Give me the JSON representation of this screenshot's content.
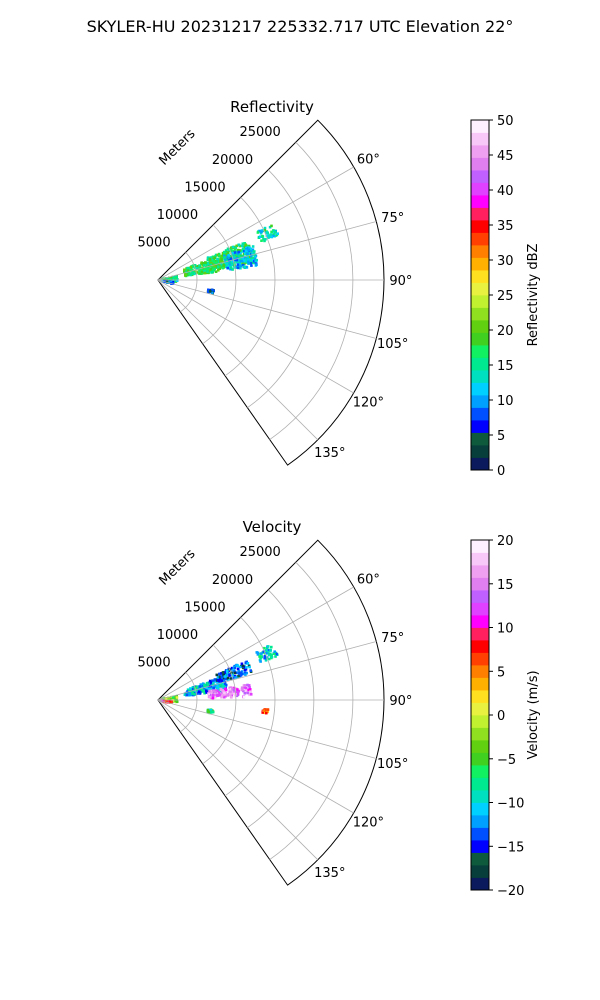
{
  "figure": {
    "title": "SKYLER-HU  20231217  225332.717 UTC Elevation 22°"
  },
  "chart_data": [
    {
      "type": "polar-sector",
      "title": "Reflectivity",
      "radial_label": "Meters",
      "radial_ticks": [
        5000,
        10000,
        15000,
        20000,
        25000
      ],
      "radial_tick_labels": [
        "5000",
        "10000",
        "15000",
        "20000",
        "25000"
      ],
      "rmax": 29000,
      "theta_ticks_deg": [
        60,
        75,
        90,
        105,
        120,
        135
      ],
      "theta_tick_labels": [
        "60°",
        "75°",
        "90°",
        "105°",
        "120°",
        "135°"
      ],
      "theta_range_deg": [
        45,
        145
      ],
      "grid": true,
      "colorbar": {
        "label": "Reflectivity dBZ",
        "min": 0,
        "max": 50,
        "ticks": [
          0,
          5,
          10,
          15,
          20,
          25,
          30,
          35,
          40,
          45,
          50
        ],
        "tick_labels": [
          "0",
          "5",
          "10",
          "15",
          "20",
          "25",
          "30",
          "35",
          "40",
          "45",
          "50"
        ],
        "colors": [
          "#0a1a5c",
          "#073e3b",
          "#0d5a3c",
          "#0000ff",
          "#0050ff",
          "#00a0ff",
          "#00d0ff",
          "#00e0c0",
          "#00e890",
          "#10f060",
          "#40d020",
          "#60d010",
          "#90e020",
          "#c0f030",
          "#e8f040",
          "#ffe020",
          "#ffb000",
          "#ff8000",
          "#ff4000",
          "#ff0000",
          "#ff2060",
          "#ff00ff",
          "#e040ff",
          "#c060ff",
          "#e080f0",
          "#f0a0f0",
          "#f8c8f8",
          "#fff0ff"
        ]
      },
      "echo_regions": [
        {
          "theta_range": [
            68,
            82
          ],
          "r_range": [
            3500,
            8000
          ],
          "value": 17
        },
        {
          "theta_range": [
            66,
            80
          ],
          "r_range": [
            7000,
            12500
          ],
          "value": 17
        },
        {
          "theta_range": [
            70,
            82
          ],
          "r_range": [
            9000,
            13000
          ],
          "value": 12
        },
        {
          "theta_range": [
            64,
            70
          ],
          "r_range": [
            14000,
            16500
          ],
          "value": 14
        },
        {
          "theta_range": [
            78,
            96
          ],
          "r_range": [
            300,
            2500
          ],
          "value": 16
        },
        {
          "theta_range": [
            96,
            105
          ],
          "r_range": [
            500,
            2000
          ],
          "value": 8
        },
        {
          "theta_range": [
            100,
            104
          ],
          "r_range": [
            6500,
            7300
          ],
          "value": 7
        }
      ]
    },
    {
      "type": "polar-sector",
      "title": "Velocity",
      "radial_label": "Meters",
      "radial_ticks": [
        5000,
        10000,
        15000,
        20000,
        25000
      ],
      "radial_tick_labels": [
        "5000",
        "10000",
        "15000",
        "20000",
        "25000"
      ],
      "rmax": 29000,
      "theta_ticks_deg": [
        60,
        75,
        90,
        105,
        120,
        135
      ],
      "theta_tick_labels": [
        "60°",
        "75°",
        "90°",
        "105°",
        "120°",
        "135°"
      ],
      "theta_range_deg": [
        45,
        145
      ],
      "grid": true,
      "colorbar": {
        "label": "Velocity (m/s)",
        "min": -20,
        "max": 20,
        "ticks": [
          -20,
          -15,
          -10,
          -5,
          0,
          5,
          10,
          15,
          20
        ],
        "tick_labels": [
          "−20",
          "−15",
          "−10",
          "−5",
          "0",
          "5",
          "10",
          "15",
          "20"
        ],
        "colors": [
          "#0a1a5c",
          "#073e3b",
          "#0d5a3c",
          "#0000ff",
          "#0050ff",
          "#00a0ff",
          "#00d0ff",
          "#00e0c0",
          "#00e890",
          "#10f060",
          "#40d020",
          "#60d010",
          "#90e020",
          "#c0f030",
          "#e8f040",
          "#ffe020",
          "#ffb000",
          "#ff8000",
          "#ff4000",
          "#ff0000",
          "#ff2060",
          "#ff00ff",
          "#e040ff",
          "#c060ff",
          "#e080f0",
          "#f0a0f0",
          "#f8c8f8",
          "#fff0ff"
        ]
      },
      "echo_regions": [
        {
          "theta_range": [
            70,
            82
          ],
          "r_range": [
            3500,
            9000
          ],
          "value": -11
        },
        {
          "theta_range": [
            66,
            74
          ],
          "r_range": [
            8000,
            12500
          ],
          "value": -14
        },
        {
          "theta_range": [
            80,
            88
          ],
          "r_range": [
            6500,
            12000
          ],
          "value": 15
        },
        {
          "theta_range": [
            64,
            70
          ],
          "r_range": [
            14000,
            16500
          ],
          "value": -10
        },
        {
          "theta_range": [
            78,
            96
          ],
          "r_range": [
            300,
            2500
          ],
          "value": -3
        },
        {
          "theta_range": [
            96,
            104
          ],
          "r_range": [
            300,
            1800
          ],
          "value": 8
        },
        {
          "theta_range": [
            100,
            104
          ],
          "r_range": [
            6500,
            7300
          ],
          "value": -7
        },
        {
          "theta_range": [
            95,
            97
          ],
          "r_range": [
            13500,
            14200
          ],
          "value": 6
        }
      ]
    }
  ]
}
